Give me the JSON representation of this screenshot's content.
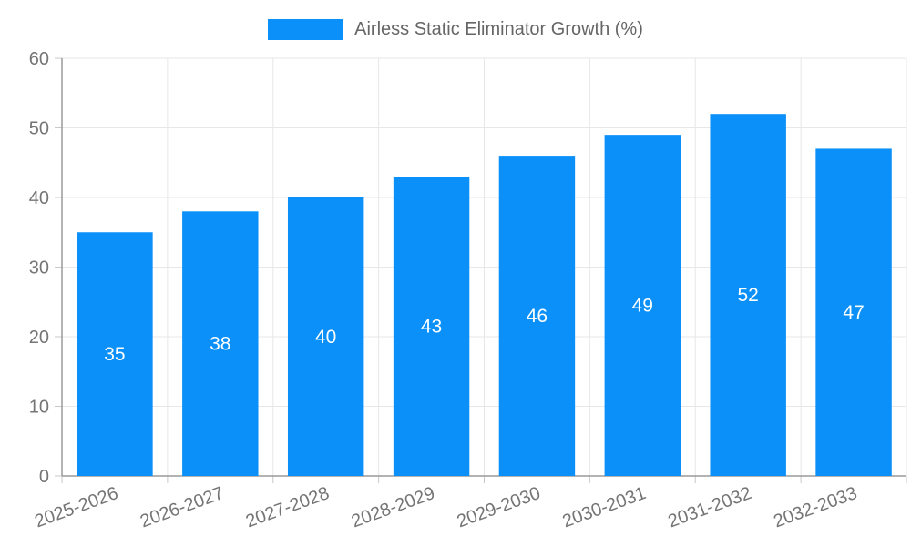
{
  "chart_data": {
    "type": "bar",
    "title": "Airless Static Eliminator Growth (%)",
    "categories": [
      "2025-2026",
      "2026-2027",
      "2027-2028",
      "2028-2029",
      "2029-2030",
      "2030-2031",
      "2031-2032",
      "2032-2033"
    ],
    "values": [
      35,
      38,
      40,
      43,
      46,
      49,
      52,
      47
    ],
    "xlabel": "",
    "ylabel": "",
    "ylim": [
      0,
      60
    ],
    "yticks": [
      0,
      10,
      20,
      30,
      40,
      50,
      60
    ],
    "grid": true,
    "legend_position": "top",
    "value_labels": [
      "35",
      "38",
      "40",
      "43",
      "46",
      "49",
      "52",
      "47"
    ],
    "colors": {
      "bar": "#0a90f8",
      "value_label": "#ffffff",
      "axis_line": "#9a9a9a",
      "gridline": "#e7e7e7",
      "tick_mark": "#c9c9c9",
      "tick_label": "#757575",
      "legend_text": "#666666",
      "background": "#ffffff"
    }
  }
}
